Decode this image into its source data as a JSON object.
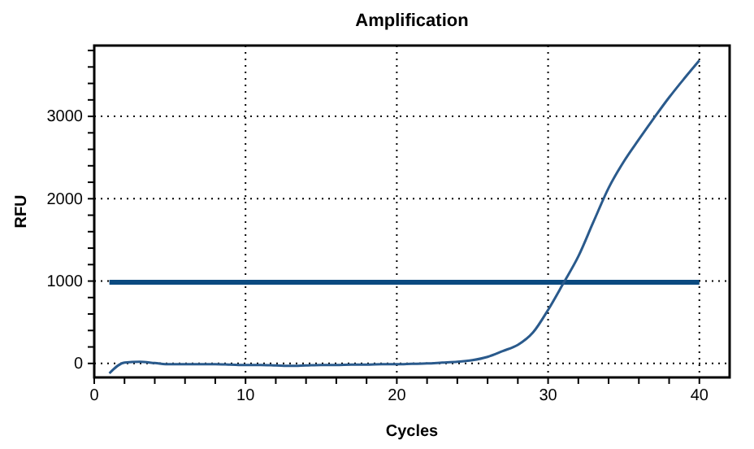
{
  "chart_data": {
    "type": "line",
    "title": "Amplification",
    "xlabel": "Cycles",
    "ylabel": "RFU",
    "x": [
      1,
      2,
      3,
      4,
      5,
      6,
      7,
      8,
      9,
      10,
      11,
      12,
      13,
      14,
      15,
      16,
      17,
      18,
      19,
      20,
      21,
      22,
      23,
      24,
      25,
      26,
      27,
      28,
      29,
      30,
      31,
      32,
      33,
      34,
      35,
      36,
      37,
      38,
      39,
      40
    ],
    "series": [
      {
        "color": "#2a5a8c",
        "values": [
          -120,
          10,
          20,
          5,
          -10,
          -10,
          -10,
          -10,
          -15,
          -20,
          -20,
          -25,
          -30,
          -25,
          -20,
          -20,
          -15,
          -15,
          -10,
          -10,
          -5,
          0,
          10,
          20,
          40,
          80,
          150,
          225,
          375,
          650,
          970,
          1300,
          1720,
          2130,
          2450,
          2720,
          2980,
          3230,
          3460,
          3680
        ]
      }
    ],
    "xlim": [
      0,
      42
    ],
    "ylim": [
      -170,
      3860
    ],
    "xticks": [
      0,
      {
        "value": 2,
        "label": null
      },
      {
        "value": 4,
        "label": null
      },
      {
        "value": 6,
        "label": null
      },
      {
        "value": 8,
        "label": null
      },
      10,
      {
        "value": 12,
        "label": null
      },
      {
        "value": 14,
        "label": null
      },
      {
        "value": 16,
        "label": null
      },
      {
        "value": 18,
        "label": null
      },
      20,
      {
        "value": 22,
        "label": null
      },
      {
        "value": 24,
        "label": null
      },
      {
        "value": 26,
        "label": null
      },
      {
        "value": 28,
        "label": null
      },
      30,
      {
        "value": 32,
        "label": null
      },
      {
        "value": 34,
        "label": null
      },
      {
        "value": 36,
        "label": null
      },
      {
        "value": 38,
        "label": null
      },
      40
    ],
    "yticks": [
      0,
      {
        "value": 200,
        "label": null
      },
      {
        "value": 400,
        "label": null
      },
      {
        "value": 600,
        "label": null
      },
      {
        "value": 800,
        "label": null
      },
      1000,
      {
        "value": 1200,
        "label": null
      },
      {
        "value": 1400,
        "label": null
      },
      {
        "value": 1600,
        "label": null
      },
      {
        "value": 1800,
        "label": null
      },
      2000,
      {
        "value": 2200,
        "label": null
      },
      {
        "value": 2400,
        "label": null
      },
      {
        "value": 2600,
        "label": null
      },
      {
        "value": 2800,
        "label": null
      },
      3000,
      {
        "value": 3200,
        "label": null
      },
      {
        "value": 3400,
        "label": null
      },
      {
        "value": 3600,
        "label": null
      },
      {
        "value": 3800,
        "label": null
      }
    ],
    "ref_lines": [
      {
        "axis": "y",
        "value": 985,
        "color": "#0b4a80"
      }
    ],
    "grid": true,
    "marker": "none",
    "line_style": "solid"
  }
}
